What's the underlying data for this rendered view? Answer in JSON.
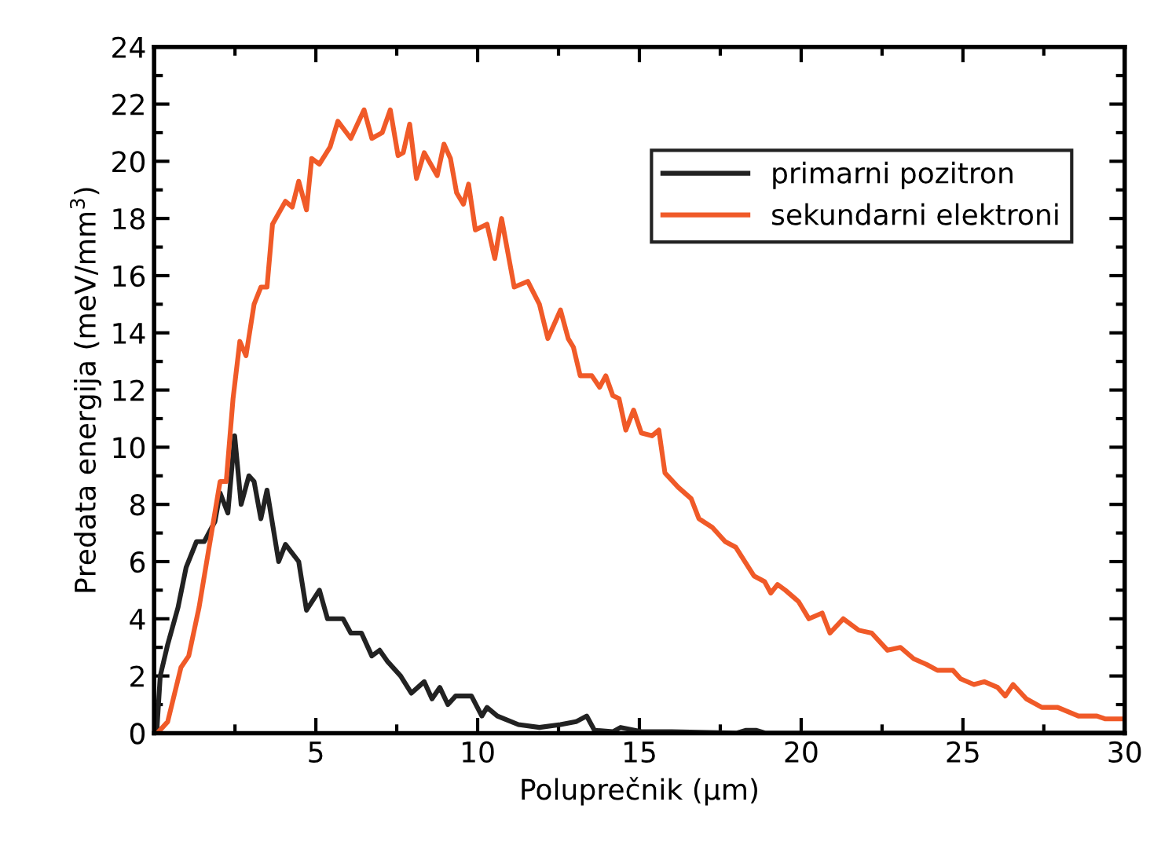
{
  "chart_data": {
    "type": "line",
    "xlabel": "Poluprečnik (μm)",
    "ylabel": "Predata energija (meV/mm$^{3}$)",
    "xlim": [
      0,
      30
    ],
    "xticks": [
      5,
      10,
      15,
      20,
      25,
      30
    ],
    "ylim": [
      0,
      24
    ],
    "yticks": [
      0,
      2,
      4,
      6,
      8,
      10,
      12,
      14,
      16,
      18,
      20,
      22,
      24
    ],
    "grid": false,
    "legend": "top right",
    "marker": "none",
    "line_style": "solid",
    "series": [
      {
        "name": "primarni pozitron",
        "color": "#222222",
        "x": [
          0.08,
          0.19,
          0.42,
          0.74,
          0.99,
          1.31,
          1.55,
          1.88,
          2.04,
          2.28,
          2.49,
          2.69,
          2.93,
          3.09,
          3.3,
          3.49,
          3.85,
          4.06,
          4.47,
          4.71,
          5.11,
          5.36,
          5.84,
          6.08,
          6.41,
          6.73,
          6.97,
          7.22,
          7.62,
          7.95,
          8.35,
          8.59,
          8.83,
          9.08,
          9.32,
          9.81,
          10.13,
          10.29,
          10.61,
          11.26,
          11.91,
          12.56,
          13.04,
          13.37,
          13.61,
          14.18,
          14.42,
          15.06,
          16.0,
          18.0,
          18.3,
          18.6,
          18.9,
          20.0,
          30.0
        ],
        "values": [
          0,
          2.0,
          3.1,
          4.4,
          5.8,
          6.7,
          6.7,
          7.4,
          8.4,
          7.7,
          10.4,
          8.0,
          9.0,
          8.8,
          7.5,
          8.5,
          6.0,
          6.6,
          6.0,
          4.3,
          5.0,
          4.0,
          4.0,
          3.5,
          3.5,
          2.7,
          2.9,
          2.5,
          2.0,
          1.4,
          1.8,
          1.2,
          1.6,
          1.0,
          1.3,
          1.3,
          0.6,
          0.9,
          0.6,
          0.3,
          0.2,
          0.3,
          0.4,
          0.6,
          0.1,
          0.05,
          0.2,
          0.05,
          0.05,
          0,
          0.1,
          0.1,
          0,
          0,
          0
        ]
      },
      {
        "name": "sekundarni elektroni",
        "color": "#f05a28",
        "x": [
          0.1,
          0.42,
          0.83,
          1.07,
          1.39,
          2.04,
          2.23,
          2.44,
          2.65,
          2.84,
          3.09,
          3.3,
          3.49,
          3.66,
          4.06,
          4.27,
          4.47,
          4.71,
          4.87,
          5.11,
          5.44,
          5.68,
          6.08,
          6.49,
          6.73,
          7.05,
          7.3,
          7.54,
          7.7,
          7.9,
          8.11,
          8.35,
          8.75,
          8.96,
          9.16,
          9.35,
          9.56,
          9.72,
          9.93,
          10.29,
          10.53,
          10.74,
          11.13,
          11.55,
          11.91,
          12.17,
          12.56,
          12.8,
          12.96,
          13.17,
          13.53,
          13.77,
          13.96,
          14.18,
          14.37,
          14.58,
          14.82,
          15.06,
          15.39,
          15.6,
          15.79,
          16.2,
          16.6,
          16.84,
          17.25,
          17.65,
          17.98,
          18.54,
          18.87,
          19.06,
          19.27,
          19.51,
          19.92,
          20.24,
          20.65,
          20.89,
          21.3,
          21.78,
          22.18,
          22.67,
          23.07,
          23.48,
          23.88,
          24.21,
          24.69,
          24.93,
          25.34,
          25.66,
          26.07,
          26.31,
          26.55,
          26.96,
          27.44,
          27.93,
          28.57,
          29.14,
          29.39,
          30.0
        ],
        "values": [
          0,
          0.4,
          2.3,
          2.7,
          4.4,
          8.8,
          8.8,
          11.7,
          13.7,
          13.2,
          15.0,
          15.6,
          15.6,
          17.8,
          18.6,
          18.4,
          19.3,
          18.3,
          20.1,
          19.9,
          20.5,
          21.4,
          20.8,
          21.8,
          20.8,
          21.0,
          21.8,
          20.2,
          20.3,
          21.3,
          19.4,
          20.3,
          19.5,
          20.6,
          20.1,
          18.9,
          18.5,
          19.2,
          17.6,
          17.8,
          16.6,
          18.0,
          15.6,
          15.8,
          15.0,
          13.8,
          14.8,
          13.8,
          13.5,
          12.5,
          12.5,
          12.1,
          12.5,
          11.8,
          11.7,
          10.6,
          11.3,
          10.5,
          10.4,
          10.6,
          9.1,
          8.6,
          8.2,
          7.5,
          7.2,
          6.7,
          6.5,
          5.5,
          5.3,
          4.9,
          5.2,
          5.0,
          4.6,
          4.0,
          4.2,
          3.5,
          4.0,
          3.6,
          3.5,
          2.9,
          3.0,
          2.6,
          2.4,
          2.2,
          2.2,
          1.9,
          1.7,
          1.8,
          1.6,
          1.3,
          1.7,
          1.2,
          0.9,
          0.9,
          0.6,
          0.6,
          0.5,
          0.5
        ]
      }
    ]
  }
}
